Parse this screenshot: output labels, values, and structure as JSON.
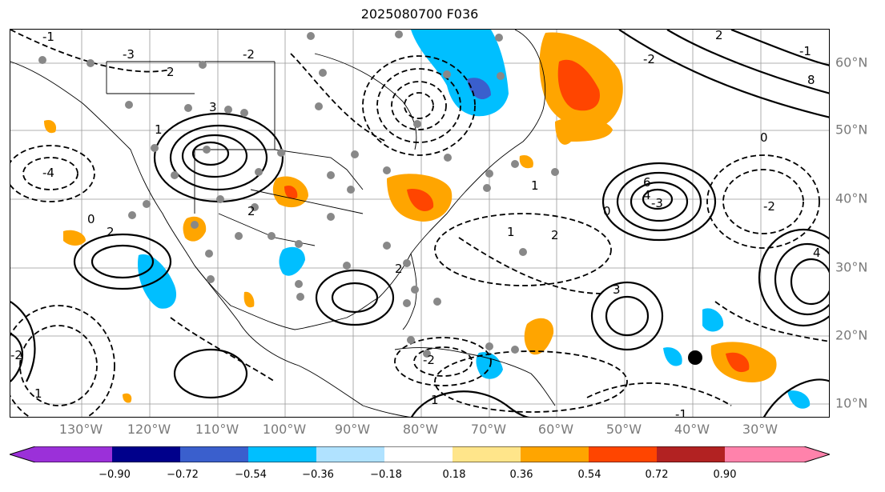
{
  "title": "2025080700 F036",
  "lon_labels": [
    "130°W",
    "120°W",
    "110°W",
    "100°W",
    "90°W",
    "80°W",
    "70°W",
    "60°W",
    "50°W",
    "40°W",
    "30°W"
  ],
  "lat_labels": [
    "60°N",
    "50°N",
    "40°N",
    "30°N",
    "20°N",
    "10°N"
  ],
  "colorbar": {
    "ticks": [
      "−0.90",
      "−0.72",
      "−0.54",
      "−0.36",
      "−0.18",
      "0.18",
      "0.36",
      "0.54",
      "0.72",
      "0.90"
    ],
    "colors": [
      "#9b30d9",
      "#00008b",
      "#3a5fcd",
      "#00bfff",
      "#b0e2ff",
      "#ffffff",
      "#ffe58a",
      "#ffa500",
      "#ff4500",
      "#b22222",
      "#ff82ab"
    ]
  },
  "contour_labels": [
    "-1",
    "-3",
    "2",
    "3",
    "-2",
    "1",
    "-4",
    "0",
    "2",
    "6",
    "4",
    "-3",
    "8",
    "2",
    "-1",
    "0",
    "-2",
    "1",
    "4",
    "-2",
    "1",
    "2",
    "0",
    "3",
    "-2",
    "1",
    "-2",
    "2",
    "1",
    "-1",
    "2"
  ],
  "marker": {
    "type": "black-dot",
    "lat": 17,
    "lon": -38
  }
}
